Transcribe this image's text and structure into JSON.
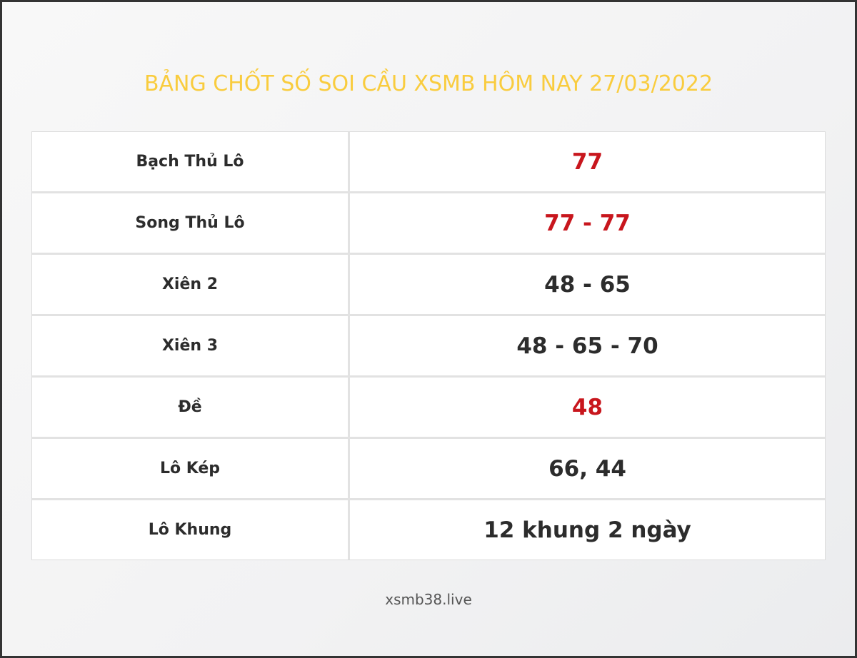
{
  "title": "BẢNG CHỐT SỐ SOI CẦU XSMB HÔM NAY 27/03/2022",
  "colors": {
    "title": "#f9cc3e",
    "highlight": "#c8161d",
    "text": "#2c2c2c"
  },
  "rows": [
    {
      "label": "Bạch Thủ Lô",
      "value": "77",
      "highlight": true
    },
    {
      "label": "Song Thủ Lô",
      "value": "77 - 77",
      "highlight": true
    },
    {
      "label": "Xiên 2",
      "value": "48 - 65",
      "highlight": false
    },
    {
      "label": "Xiên 3",
      "value": "48 - 65 - 70",
      "highlight": false
    },
    {
      "label": "Đề",
      "value": "48",
      "highlight": true
    },
    {
      "label": "Lô Kép",
      "value": "66, 44",
      "highlight": false
    },
    {
      "label": "Lô Khung",
      "value": "12 khung 2 ngày",
      "highlight": false
    }
  ],
  "footer": "xsmb38.live"
}
